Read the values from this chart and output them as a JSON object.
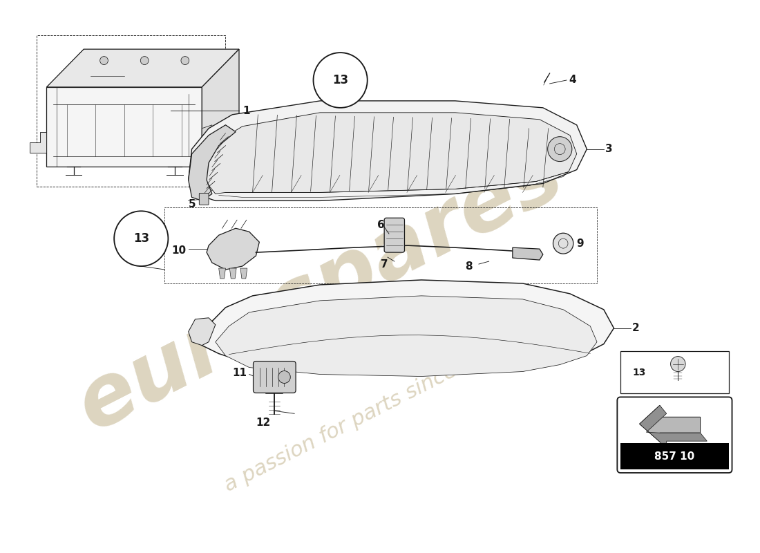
{
  "bg_color": "#ffffff",
  "line_color": "#1a1a1a",
  "part_number": "857 10",
  "watermark_color": "#ddd5c0",
  "lw": 0.9
}
